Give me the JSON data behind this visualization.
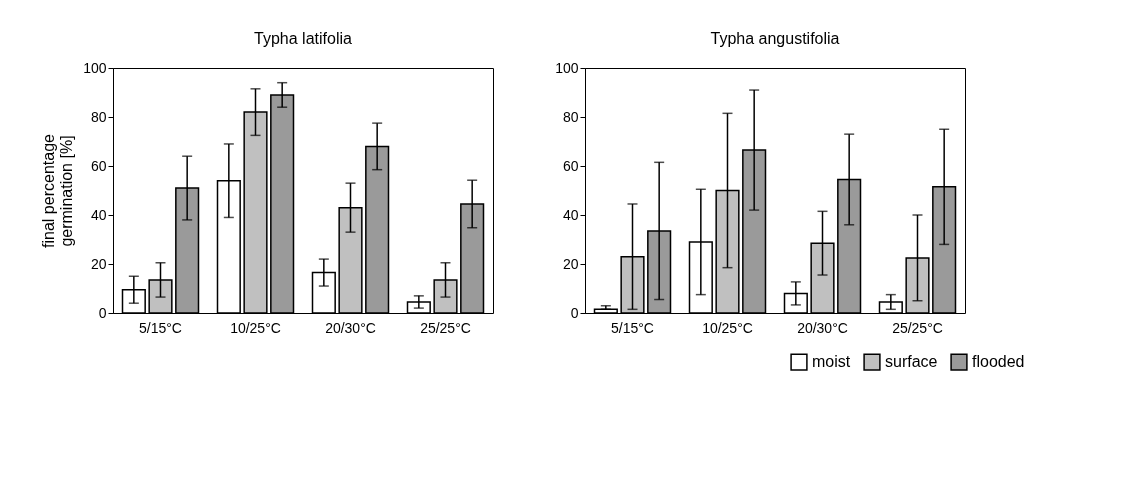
{
  "chart_data": [
    {
      "type": "bar",
      "title": "Typha latifolia",
      "ylabel": "final percentage germination [%]",
      "categories": [
        "5/15°C",
        "10/25°C",
        "20/30°C",
        "25/25°C"
      ],
      "series": [
        {
          "color": "#ffffff",
          "values": [
            9.5,
            54,
            16.5,
            4.5
          ],
          "errors": [
            5.5,
            15,
            5.5,
            2.5
          ]
        },
        {
          "color": "#c0c0c0",
          "values": [
            13.5,
            82,
            43,
            13.5
          ],
          "errors": [
            7,
            9.5,
            10,
            7
          ]
        },
        {
          "color": "#9a9a9a",
          "values": [
            51,
            89,
            68,
            44.5
          ],
          "errors": [
            13,
            5,
            9.5,
            9.7
          ]
        }
      ],
      "ylim": [
        0,
        100
      ],
      "yticks": [
        0,
        20,
        40,
        60,
        80,
        100
      ],
      "grid": false
    },
    {
      "type": "bar",
      "title": "Typha angustifolia",
      "categories": [
        "5/15°C",
        "10/25°C",
        "20/30°C",
        "25/25°C"
      ],
      "series": [
        {
          "name": "moist",
          "color": "#ffffff",
          "values": [
            1.5,
            29,
            8,
            4.5
          ],
          "errors": [
            [
              1.5,
              3
            ],
            21.5,
            4.7,
            3
          ]
        },
        {
          "name": "surface",
          "color": "#c0c0c0",
          "values": [
            23,
            50,
            28.5,
            22.5
          ],
          "errors": [
            21.5,
            31.5,
            13,
            17.5
          ]
        },
        {
          "name": "flooded",
          "color": "#9a9a9a",
          "values": [
            33.5,
            66.5,
            54.5,
            51.5
          ],
          "errors": [
            28,
            24.5,
            18.5,
            23.5
          ]
        }
      ],
      "ylim": [
        0,
        100
      ],
      "yticks": [
        0,
        20,
        40,
        60,
        80,
        100
      ],
      "grid": false,
      "legend": "bottom right"
    }
  ]
}
